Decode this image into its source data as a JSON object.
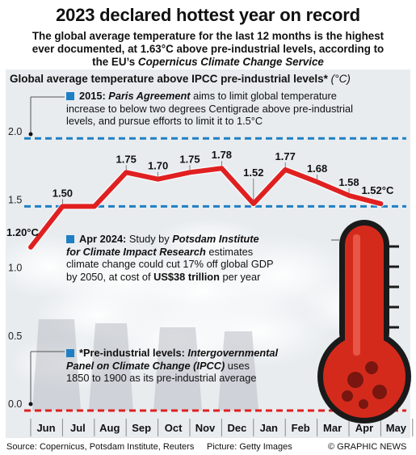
{
  "header": {
    "title": "2023 declared hottest year on record",
    "subtitle_line1": "The global average temperature for the last 12 months is the highest",
    "subtitle_line2": "ever documented, at 1.63°C above pre-industrial levels, according to",
    "subtitle_line3_pre": "the EU’s ",
    "subtitle_line3_em": "Copernicus Climate Change Service"
  },
  "chart_data": {
    "type": "line",
    "title": "Global average temperature above IPCC pre-industrial levels*",
    "unit": "(°C)",
    "categories": [
      "Jun",
      "Jul",
      "Aug",
      "Sep",
      "Oct",
      "Nov",
      "Dec",
      "Jan",
      "Feb",
      "Mar",
      "Apr",
      "May"
    ],
    "series": [
      {
        "values": [
          1.2,
          1.5,
          1.5,
          1.75,
          1.7,
          1.75,
          1.78,
          1.52,
          1.77,
          1.68,
          1.58,
          1.52
        ],
        "data_labels": [
          "1.20°C",
          "1.50",
          "",
          "1.75",
          "1.70",
          "1.75",
          "1.78",
          "1.52",
          "1.77",
          "1.68",
          "1.58",
          "1.52°C"
        ],
        "color": "#e02020"
      }
    ],
    "yticks": [
      "0.0",
      "0.5",
      "1.0",
      "1.5",
      "2.0"
    ],
    "ylim": [
      0,
      2.2
    ],
    "reference_lines": [
      2.0,
      1.5,
      0.0
    ],
    "reference_color": "#1f7fc4",
    "grid": false
  },
  "notes": {
    "paris_year": "2015:",
    "paris_em": "Paris Agreement",
    "paris_text1": " aims to limit global temperature",
    "paris_text2": "increase to below two degrees Centigrade above pre-industrial",
    "paris_text3": "levels, and pursue efforts to limit it to 1.5°C",
    "potsdam_date": "Apr 2024:",
    "potsdam_pre": " Study by ",
    "potsdam_em1": "Potsdam Institute",
    "potsdam_em2": "for Climate Impact Research",
    "potsdam_text1": " estimates",
    "potsdam_text2": "climate change could cut 17% off global GDP",
    "potsdam_text3_pre": "by 2050, at cost of ",
    "potsdam_text3_b": "US$38 trillion",
    "potsdam_text3_post": " per year",
    "ipcc_pre": "*Pre-industrial levels: ",
    "ipcc_em1": "Intergovernmental",
    "ipcc_em2": "Panel on Climate Change (IPCC)",
    "ipcc_text1": " uses",
    "ipcc_text2": "1850 to 1900 as its pre-industrial average"
  },
  "footer": {
    "source": "Source: Copernicus, Potsdam Institute, Reuters",
    "picture": "Picture: Getty Images",
    "credit": "© GRAPHIC NEWS"
  },
  "colors": {
    "line": "#e02020",
    "accent_blue": "#1f7fc4",
    "thermo_red": "#d42a1c",
    "background": "#e8ecef"
  }
}
